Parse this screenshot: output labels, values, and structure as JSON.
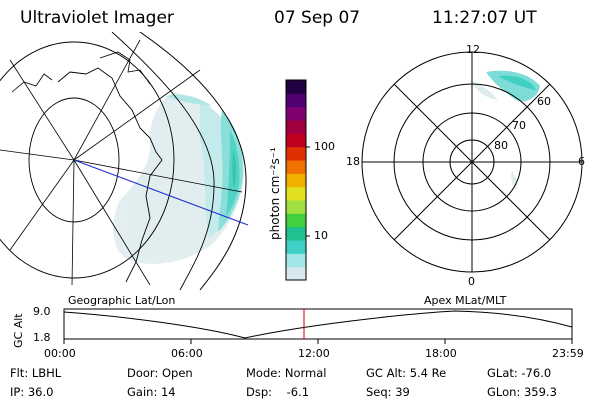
{
  "header": {
    "title": "Ultraviolet Imager",
    "date": "07 Sep 07",
    "time": "11:27:07 UT"
  },
  "colorbar": {
    "unit_label": "photon cm⁻²s⁻¹",
    "ticks": [
      "100",
      "10"
    ],
    "colors": [
      "#d8e8ee",
      "#a0e6e6",
      "#40d0c8",
      "#20c090",
      "#40d040",
      "#a0e040",
      "#e0e020",
      "#f0b000",
      "#f07000",
      "#e03000",
      "#c00020",
      "#a00040",
      "#800070",
      "#500070",
      "#200040"
    ]
  },
  "map_left": {
    "label": "Geographic Lat/Lon"
  },
  "map_right": {
    "label": "Apex  MLat/MLT",
    "lat_labels": [
      "60",
      "70",
      "80"
    ],
    "mlt_labels": {
      "top": "12",
      "left": "18",
      "right": "6",
      "bottom": "0"
    }
  },
  "altitude_plot": {
    "ylabel": "GC Alt",
    "y_ticks": [
      "9.0",
      "1.8"
    ],
    "x_ticks": [
      "00:00",
      "06:00",
      "12:00",
      "18:00",
      "23:59"
    ],
    "current_marker_time": "11:27"
  },
  "info": {
    "flt": "Flt: LBHL",
    "ip": "IP: 36.0",
    "door": "Door: Open",
    "gain": "Gain: 14",
    "mode": "Mode: Normal",
    "dsp": "Dsp:    -6.1",
    "gc_alt": "GC Alt: 5.4 Re",
    "seq": "Seq: 39",
    "glat": "GLat: -76.0",
    "glon": "GLon: 359.3"
  }
}
